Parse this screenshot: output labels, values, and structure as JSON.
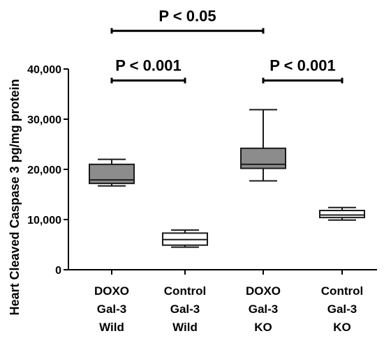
{
  "chart_data": {
    "type": "box",
    "title": "",
    "xlabel": "",
    "ylabel": "Heart Cleaved Caspase 3 pg/mg protein",
    "ylim": [
      0,
      40000
    ],
    "yticks": [
      0,
      10000,
      20000,
      30000,
      40000
    ],
    "ytick_labels": [
      "0",
      "10,000",
      "20,000",
      "30,000",
      "40,000"
    ],
    "grid": false,
    "categories": [
      {
        "lines": [
          "DOXO",
          "Gal-3",
          "Wild"
        ]
      },
      {
        "lines": [
          "Control",
          "Gal-3",
          "Wild"
        ]
      },
      {
        "lines": [
          "DOXO",
          "Gal-3",
          "KO"
        ]
      },
      {
        "lines": [
          "Control",
          "Gal-3",
          "KO"
        ]
      }
    ],
    "boxes": [
      {
        "min": 16700,
        "q1": 17200,
        "median": 17900,
        "q3": 21000,
        "max": 22000,
        "fill": "#8c8c8c"
      },
      {
        "min": 4500,
        "q1": 4900,
        "median": 6000,
        "q3": 7300,
        "max": 7900,
        "fill": "#ffffff"
      },
      {
        "min": 17700,
        "q1": 20200,
        "median": 21000,
        "q3": 24200,
        "max": 31900,
        "fill": "#8c8c8c"
      },
      {
        "min": 9900,
        "q1": 10400,
        "median": 10900,
        "q3": 11800,
        "max": 12400,
        "fill": "#ffffff"
      }
    ],
    "annotations": [
      {
        "label": "P < 0.05",
        "from": 0,
        "to": 2,
        "y": 47600
      },
      {
        "label": "P < 0.001",
        "from": 0,
        "to": 1,
        "y": 37700
      },
      {
        "label": "P < 0.001",
        "from": 2,
        "to": 3,
        "y": 37700
      }
    ]
  }
}
